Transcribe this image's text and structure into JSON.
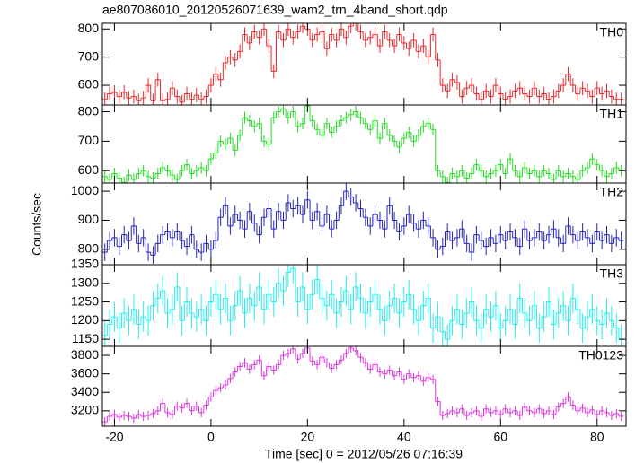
{
  "chart_data": {
    "type": "step",
    "title": "ae807086010_20120526071639_wam2_trn_4band_short.qdp",
    "xlabel": "Time [sec] 0 = 2012/05/26 07:16:39",
    "ylabel": "Counts/sec",
    "xlim": [
      -22.5,
      86
    ],
    "xticks": [
      -20,
      0,
      20,
      40,
      60,
      80
    ],
    "x": [
      -22,
      -21,
      -20,
      -19,
      -18,
      -17,
      -16,
      -15,
      -14,
      -13,
      -12,
      -11,
      -10,
      -9,
      -8,
      -7,
      -6,
      -5,
      -4,
      -3,
      -2,
      -1,
      0,
      1,
      2,
      3,
      4,
      5,
      6,
      7,
      8,
      9,
      10,
      11,
      12,
      13,
      14,
      15,
      16,
      17,
      18,
      19,
      20,
      21,
      22,
      23,
      24,
      25,
      26,
      27,
      28,
      29,
      30,
      31,
      32,
      33,
      34,
      35,
      36,
      37,
      38,
      39,
      40,
      41,
      42,
      43,
      44,
      45,
      46,
      47,
      48,
      49,
      50,
      51,
      52,
      53,
      54,
      55,
      56,
      57,
      58,
      59,
      60,
      61,
      62,
      63,
      64,
      65,
      66,
      67,
      68,
      69,
      70,
      71,
      72,
      73,
      74,
      75,
      76,
      77,
      78,
      79,
      80,
      81,
      82,
      83,
      84,
      85
    ],
    "panels": [
      {
        "name": "TH0",
        "color": "#e8262a",
        "ylim": [
          530,
          820
        ],
        "yticks": [
          600,
          700,
          800
        ],
        "yerr": 25,
        "values": [
          550,
          570,
          575,
          560,
          575,
          555,
          560,
          545,
          555,
          600,
          545,
          620,
          545,
          550,
          590,
          560,
          540,
          570,
          550,
          565,
          550,
          560,
          600,
          640,
          620,
          680,
          700,
          690,
          720,
          780,
          750,
          790,
          770,
          800,
          740,
          650,
          790,
          760,
          800,
          770,
          790,
          810,
          800,
          760,
          780,
          790,
          730,
          780,
          760,
          800,
          770,
          810,
          820,
          790,
          760,
          770,
          780,
          740,
          790,
          760,
          740,
          780,
          750,
          730,
          760,
          720,
          740,
          700,
          780,
          690,
          600,
          580,
          620,
          610,
          560,
          590,
          600,
          570,
          550,
          580,
          560,
          600,
          570,
          550,
          560,
          580,
          590,
          570,
          560,
          590,
          560,
          570,
          550,
          560,
          580,
          600,
          640,
          600,
          570,
          590,
          580,
          560,
          590,
          570,
          580,
          560,
          550,
          550
        ]
      },
      {
        "name": "TH1",
        "color": "#22dd22",
        "ylim": [
          558,
          823
        ],
        "yticks": [
          600,
          700,
          800
        ],
        "yerr": 20,
        "values": [
          580,
          570,
          590,
          575,
          560,
          585,
          570,
          590,
          600,
          580,
          575,
          590,
          610,
          600,
          585,
          570,
          600,
          620,
          590,
          600,
          610,
          600,
          640,
          660,
          700,
          690,
          710,
          670,
          720,
          780,
          770,
          750,
          760,
          700,
          690,
          780,
          800,
          810,
          780,
          800,
          750,
          760,
          820,
          770,
          740,
          720,
          760,
          730,
          750,
          770,
          780,
          790,
          800,
          780,
          760,
          740,
          770,
          710,
          760,
          720,
          700,
          680,
          710,
          730,
          700,
          720,
          750,
          760,
          740,
          600,
          580,
          560,
          590,
          580,
          600,
          575,
          590,
          620,
          600,
          580,
          590,
          600,
          620,
          590,
          640,
          600,
          580,
          610,
          590,
          600,
          580,
          600,
          590,
          570,
          600,
          580,
          590,
          580,
          570,
          600,
          610,
          640,
          620,
          600,
          580,
          590,
          610,
          600
        ]
      },
      {
        "name": "TH2",
        "color": "#2222bb",
        "ylim": [
          747,
          1028
        ],
        "yticks": [
          800,
          900,
          1000
        ],
        "yerr": 30,
        "values": [
          790,
          830,
          840,
          810,
          850,
          830,
          880,
          820,
          840,
          790,
          780,
          820,
          850,
          860,
          840,
          860,
          830,
          810,
          850,
          800,
          790,
          820,
          800,
          830,
          910,
          950,
          880,
          920,
          900,
          870,
          930,
          890,
          850,
          910,
          940,
          870,
          930,
          900,
          960,
          940,
          950,
          920,
          970,
          900,
          930,
          880,
          920,
          870,
          900,
          950,
          1000,
          980,
          960,
          940,
          910,
          880,
          920,
          900,
          870,
          950,
          900,
          860,
          880,
          920,
          890,
          870,
          900,
          880,
          840,
          800,
          810,
          860,
          830,
          840,
          870,
          820,
          790,
          850,
          830,
          810,
          840,
          820,
          850,
          830,
          860,
          840,
          810,
          870,
          830,
          840,
          860,
          830,
          850,
          870,
          840,
          820,
          880,
          850,
          830,
          860,
          840,
          820,
          860,
          830,
          850,
          820,
          840,
          830
        ]
      },
      {
        "name": "TH3",
        "color": "#22eeee",
        "ylim": [
          1131,
          1350
        ],
        "yticks": [
          1150,
          1200,
          1250,
          1300,
          1350
        ],
        "yerr": 40,
        "values": [
          1160,
          1190,
          1210,
          1180,
          1220,
          1200,
          1230,
          1190,
          1210,
          1200,
          1240,
          1260,
          1280,
          1220,
          1230,
          1290,
          1200,
          1250,
          1220,
          1210,
          1230,
          1200,
          1250,
          1270,
          1230,
          1260,
          1200,
          1240,
          1280,
          1220,
          1260,
          1240,
          1290,
          1230,
          1270,
          1250,
          1300,
          1280,
          1330,
          1340,
          1250,
          1290,
          1230,
          1270,
          1310,
          1260,
          1240,
          1270,
          1220,
          1250,
          1280,
          1230,
          1290,
          1260,
          1220,
          1250,
          1270,
          1230,
          1200,
          1240,
          1260,
          1220,
          1250,
          1270,
          1230,
          1200,
          1240,
          1260,
          1180,
          1210,
          1170,
          1150,
          1200,
          1230,
          1190,
          1220,
          1250,
          1200,
          1180,
          1230,
          1210,
          1240,
          1180,
          1200,
          1230,
          1190,
          1260,
          1220,
          1200,
          1240,
          1180,
          1210,
          1250,
          1190,
          1220,
          1240,
          1200,
          1260,
          1230,
          1180,
          1210,
          1230,
          1200,
          1190,
          1220,
          1200,
          1180,
          1150
        ]
      },
      {
        "name": "TH0123",
        "color": "#dd33dd",
        "ylim": [
          3033,
          3898
        ],
        "yticks": [
          3200,
          3400,
          3600,
          3800
        ],
        "yerr": 50,
        "values": [
          3080,
          3140,
          3160,
          3130,
          3150,
          3140,
          3120,
          3160,
          3140,
          3150,
          3170,
          3200,
          3280,
          3180,
          3160,
          3250,
          3230,
          3280,
          3200,
          3250,
          3180,
          3260,
          3350,
          3420,
          3450,
          3480,
          3550,
          3620,
          3680,
          3720,
          3650,
          3700,
          3750,
          3580,
          3680,
          3640,
          3700,
          3800,
          3820,
          3870,
          3760,
          3820,
          3880,
          3740,
          3700,
          3780,
          3720,
          3660,
          3700,
          3750,
          3820,
          3880,
          3850,
          3780,
          3720,
          3650,
          3700,
          3620,
          3600,
          3640,
          3580,
          3620,
          3540,
          3600,
          3560,
          3580,
          3520,
          3560,
          3540,
          3300,
          3150,
          3170,
          3200,
          3180,
          3220,
          3150,
          3180,
          3200,
          3140,
          3220,
          3180,
          3200,
          3160,
          3220,
          3180,
          3200,
          3150,
          3240,
          3200,
          3180,
          3220,
          3170,
          3200,
          3160,
          3240,
          3280,
          3350,
          3260,
          3200,
          3230,
          3180,
          3210,
          3160,
          3200,
          3180,
          3150,
          3170,
          3140
        ]
      }
    ]
  }
}
